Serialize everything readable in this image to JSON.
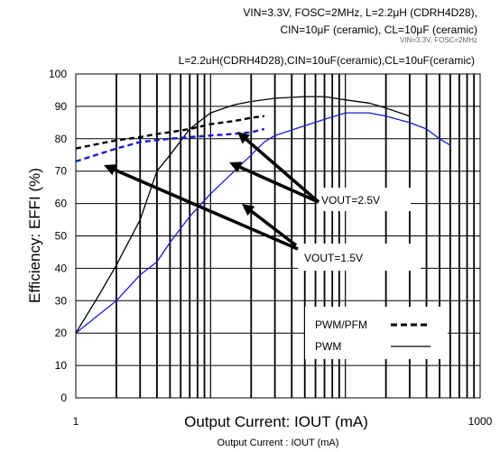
{
  "header": {
    "line1": "VIN=3.3V, FOSC=2MHz, L=2.2μH (CDRH4D28),",
    "line2": "CIN=10μF (ceramic), CL=10μF (ceramic)",
    "overlap": "VIN=3.3V, FOSC=2MHz",
    "line3": "L=2.2uH(CDRH4D28),CIN=10uF(ceramic),CL=10uF(ceramic)"
  },
  "chart_data": {
    "type": "line",
    "xscale": "log",
    "xlim": [
      1,
      1000
    ],
    "ylim": [
      0,
      100
    ],
    "xlabel": "Output Current: IOUT (mA)",
    "xlabel_small": "Output Current : IOUT (mA)",
    "ylabel": "Efficiency: EFFI (%)",
    "x_tick_labels": [
      "1",
      "1000"
    ],
    "y_ticks": [
      0,
      10,
      20,
      30,
      40,
      50,
      60,
      70,
      80,
      90,
      100
    ],
    "grid": true,
    "legend": {
      "position": "bottom-right",
      "entries": [
        {
          "label": "PWM/PFM",
          "style": "dashed"
        },
        {
          "label": "PWM",
          "style": "solid"
        }
      ]
    },
    "series": [
      {
        "output": "2.5V",
        "mode": "PWM",
        "color": "#000000",
        "dash": false,
        "points": [
          [
            1,
            20
          ],
          [
            1.5,
            32
          ],
          [
            2,
            41
          ],
          [
            3,
            55
          ],
          [
            4,
            70
          ],
          [
            5,
            75
          ],
          [
            7,
            83
          ],
          [
            10,
            88
          ],
          [
            15,
            90.5
          ],
          [
            20,
            91.5
          ],
          [
            30,
            92.5
          ],
          [
            50,
            93
          ],
          [
            70,
            93
          ],
          [
            100,
            92
          ],
          [
            150,
            91
          ],
          [
            200,
            89.5
          ],
          [
            300,
            87
          ]
        ]
      },
      {
        "output": "2.5V",
        "mode": "PWM/PFM",
        "color": "#000000",
        "dash": true,
        "points": [
          [
            1,
            77
          ],
          [
            1.5,
            78.5
          ],
          [
            2,
            79.5
          ],
          [
            3,
            80.5
          ],
          [
            4,
            81.5
          ],
          [
            5,
            82
          ],
          [
            7,
            83
          ],
          [
            10,
            84.5
          ],
          [
            15,
            85.5
          ],
          [
            20,
            86.5
          ],
          [
            25,
            87
          ]
        ]
      },
      {
        "output": "1.5V",
        "mode": "PWM",
        "color": "#1a1acc",
        "dash": false,
        "points": [
          [
            1,
            20
          ],
          [
            2,
            30
          ],
          [
            3,
            38
          ],
          [
            4,
            42
          ],
          [
            5,
            48
          ],
          [
            7,
            56
          ],
          [
            10,
            63
          ],
          [
            15,
            70
          ],
          [
            20,
            75
          ],
          [
            25,
            79
          ],
          [
            30,
            81
          ],
          [
            50,
            84
          ],
          [
            70,
            86
          ],
          [
            100,
            88
          ],
          [
            150,
            88
          ],
          [
            200,
            87
          ],
          [
            300,
            85
          ],
          [
            400,
            83
          ],
          [
            500,
            80
          ],
          [
            600,
            78
          ]
        ]
      },
      {
        "output": "1.5V",
        "mode": "PWM/PFM",
        "color": "#1a1acc",
        "dash": true,
        "points": [
          [
            1,
            73
          ],
          [
            1.3,
            74.5
          ],
          [
            2,
            77
          ],
          [
            3,
            79
          ],
          [
            5,
            80
          ],
          [
            7,
            80.5
          ],
          [
            10,
            81
          ],
          [
            15,
            81.5
          ],
          [
            20,
            82
          ],
          [
            25,
            83
          ]
        ]
      }
    ],
    "annotations": [
      {
        "text": "VOUT=2.5V"
      },
      {
        "text": "VOUT=1.5V"
      }
    ]
  }
}
